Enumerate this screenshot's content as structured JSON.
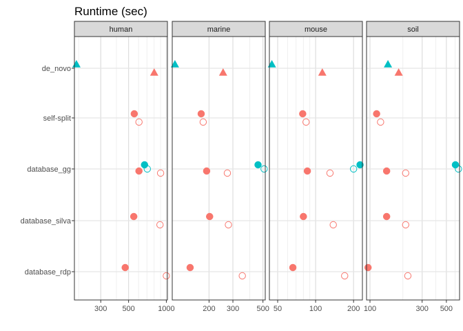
{
  "chart_data": {
    "type": "scatter",
    "title": "Runtime (sec)",
    "xlabel": "",
    "ylabel": "",
    "legend": "none",
    "x_scale": "log",
    "grid": true,
    "categories": [
      "de_novo",
      "self-split",
      "database_gg",
      "database_silva",
      "database_rdp"
    ],
    "colors": {
      "red": "#F8766D",
      "teal": "#00BFC4"
    },
    "panels": [
      {
        "name": "human",
        "xlim": [
          185,
          1020
        ],
        "x_ticks": [
          300,
          500,
          1000
        ],
        "x_tick_labels": [
          "300",
          "500",
          "1000"
        ],
        "points": [
          {
            "category": "de_novo",
            "x": 192,
            "shape": "triangle",
            "color": "teal",
            "filled": true,
            "offset": "top"
          },
          {
            "category": "de_novo",
            "x": 800,
            "shape": "triangle",
            "color": "red",
            "filled": true,
            "offset": "bottom"
          },
          {
            "category": "self-split",
            "x": 555,
            "shape": "circle",
            "color": "red",
            "filled": true,
            "offset": "top"
          },
          {
            "category": "self-split",
            "x": 605,
            "shape": "circle",
            "color": "red",
            "filled": false,
            "offset": "bottom"
          },
          {
            "category": "database_gg",
            "x": 670,
            "shape": "circle",
            "color": "teal",
            "filled": true,
            "offset": "top"
          },
          {
            "category": "database_gg",
            "x": 705,
            "shape": "circle",
            "color": "teal",
            "filled": false,
            "offset": "mid"
          },
          {
            "category": "database_gg",
            "x": 605,
            "shape": "circle",
            "color": "red",
            "filled": true,
            "offset": "mid2"
          },
          {
            "category": "database_gg",
            "x": 900,
            "shape": "circle",
            "color": "red",
            "filled": false,
            "offset": "bottom"
          },
          {
            "category": "database_silva",
            "x": 550,
            "shape": "circle",
            "color": "red",
            "filled": true,
            "offset": "top"
          },
          {
            "category": "database_silva",
            "x": 890,
            "shape": "circle",
            "color": "red",
            "filled": false,
            "offset": "bottom"
          },
          {
            "category": "database_rdp",
            "x": 470,
            "shape": "circle",
            "color": "red",
            "filled": true,
            "offset": "top"
          },
          {
            "category": "database_rdp",
            "x": 1000,
            "shape": "circle",
            "color": "red",
            "filled": false,
            "offset": "bottom"
          }
        ]
      },
      {
        "name": "marine",
        "xlim": [
          107,
          520
        ],
        "x_ticks": [
          200,
          300,
          500
        ],
        "x_tick_labels": [
          "200",
          "300",
          "500"
        ],
        "points": [
          {
            "category": "de_novo",
            "x": 112,
            "shape": "triangle",
            "color": "teal",
            "filled": true,
            "offset": "top"
          },
          {
            "category": "de_novo",
            "x": 254,
            "shape": "triangle",
            "color": "red",
            "filled": true,
            "offset": "bottom"
          },
          {
            "category": "self-split",
            "x": 175,
            "shape": "circle",
            "color": "red",
            "filled": true,
            "offset": "top"
          },
          {
            "category": "self-split",
            "x": 181,
            "shape": "circle",
            "color": "red",
            "filled": false,
            "offset": "bottom"
          },
          {
            "category": "database_gg",
            "x": 460,
            "shape": "circle",
            "color": "teal",
            "filled": true,
            "offset": "top"
          },
          {
            "category": "database_gg",
            "x": 510,
            "shape": "circle",
            "color": "teal",
            "filled": false,
            "offset": "mid"
          },
          {
            "category": "database_gg",
            "x": 192,
            "shape": "circle",
            "color": "red",
            "filled": true,
            "offset": "mid2"
          },
          {
            "category": "database_gg",
            "x": 273,
            "shape": "circle",
            "color": "red",
            "filled": false,
            "offset": "bottom"
          },
          {
            "category": "database_silva",
            "x": 202,
            "shape": "circle",
            "color": "red",
            "filled": true,
            "offset": "top"
          },
          {
            "category": "database_silva",
            "x": 278,
            "shape": "circle",
            "color": "red",
            "filled": false,
            "offset": "bottom"
          },
          {
            "category": "database_rdp",
            "x": 145,
            "shape": "circle",
            "color": "red",
            "filled": true,
            "offset": "top"
          },
          {
            "category": "database_rdp",
            "x": 352,
            "shape": "circle",
            "color": "red",
            "filled": false,
            "offset": "bottom"
          }
        ]
      },
      {
        "name": "mouse",
        "xlim": [
          43,
          235
        ],
        "x_ticks": [
          50,
          100,
          200
        ],
        "x_tick_labels": [
          "50",
          "100",
          "200"
        ],
        "points": [
          {
            "category": "de_novo",
            "x": 45,
            "shape": "triangle",
            "color": "teal",
            "filled": true,
            "offset": "top"
          },
          {
            "category": "de_novo",
            "x": 113,
            "shape": "triangle",
            "color": "red",
            "filled": true,
            "offset": "bottom"
          },
          {
            "category": "self-split",
            "x": 79,
            "shape": "circle",
            "color": "red",
            "filled": true,
            "offset": "top"
          },
          {
            "category": "self-split",
            "x": 84,
            "shape": "circle",
            "color": "red",
            "filled": false,
            "offset": "bottom"
          },
          {
            "category": "database_gg",
            "x": 225,
            "shape": "circle",
            "color": "teal",
            "filled": true,
            "offset": "top"
          },
          {
            "category": "database_gg",
            "x": 200,
            "shape": "circle",
            "color": "teal",
            "filled": false,
            "offset": "mid"
          },
          {
            "category": "database_gg",
            "x": 86,
            "shape": "circle",
            "color": "red",
            "filled": true,
            "offset": "mid2"
          },
          {
            "category": "database_gg",
            "x": 130,
            "shape": "circle",
            "color": "red",
            "filled": false,
            "offset": "bottom"
          },
          {
            "category": "database_silva",
            "x": 80,
            "shape": "circle",
            "color": "red",
            "filled": true,
            "offset": "top"
          },
          {
            "category": "database_silva",
            "x": 138,
            "shape": "circle",
            "color": "red",
            "filled": false,
            "offset": "bottom"
          },
          {
            "category": "database_rdp",
            "x": 66,
            "shape": "circle",
            "color": "red",
            "filled": true,
            "offset": "top"
          },
          {
            "category": "database_rdp",
            "x": 170,
            "shape": "circle",
            "color": "red",
            "filled": false,
            "offset": "bottom"
          }
        ]
      },
      {
        "name": "soil",
        "xlim": [
          93,
          660
        ],
        "x_ticks": [
          100,
          300,
          500
        ],
        "x_tick_labels": [
          "100",
          "300",
          "500"
        ],
        "points": [
          {
            "category": "de_novo",
            "x": 146,
            "shape": "triangle",
            "color": "teal",
            "filled": true,
            "offset": "top"
          },
          {
            "category": "de_novo",
            "x": 183,
            "shape": "triangle",
            "color": "red",
            "filled": true,
            "offset": "bottom"
          },
          {
            "category": "self-split",
            "x": 115,
            "shape": "circle",
            "color": "red",
            "filled": true,
            "offset": "top"
          },
          {
            "category": "self-split",
            "x": 125,
            "shape": "circle",
            "color": "red",
            "filled": false,
            "offset": "bottom"
          },
          {
            "category": "database_gg",
            "x": 605,
            "shape": "circle",
            "color": "teal",
            "filled": true,
            "offset": "top"
          },
          {
            "category": "database_gg",
            "x": 645,
            "shape": "circle",
            "color": "teal",
            "filled": false,
            "offset": "mid"
          },
          {
            "category": "database_gg",
            "x": 142,
            "shape": "circle",
            "color": "red",
            "filled": true,
            "offset": "mid2"
          },
          {
            "category": "database_gg",
            "x": 212,
            "shape": "circle",
            "color": "red",
            "filled": false,
            "offset": "bottom"
          },
          {
            "category": "database_silva",
            "x": 142,
            "shape": "circle",
            "color": "red",
            "filled": true,
            "offset": "top"
          },
          {
            "category": "database_silva",
            "x": 212,
            "shape": "circle",
            "color": "red",
            "filled": false,
            "offset": "bottom"
          },
          {
            "category": "database_rdp",
            "x": 96,
            "shape": "circle",
            "color": "red",
            "filled": true,
            "offset": "top"
          },
          {
            "category": "database_rdp",
            "x": 222,
            "shape": "circle",
            "color": "red",
            "filled": false,
            "offset": "bottom"
          }
        ]
      }
    ]
  }
}
